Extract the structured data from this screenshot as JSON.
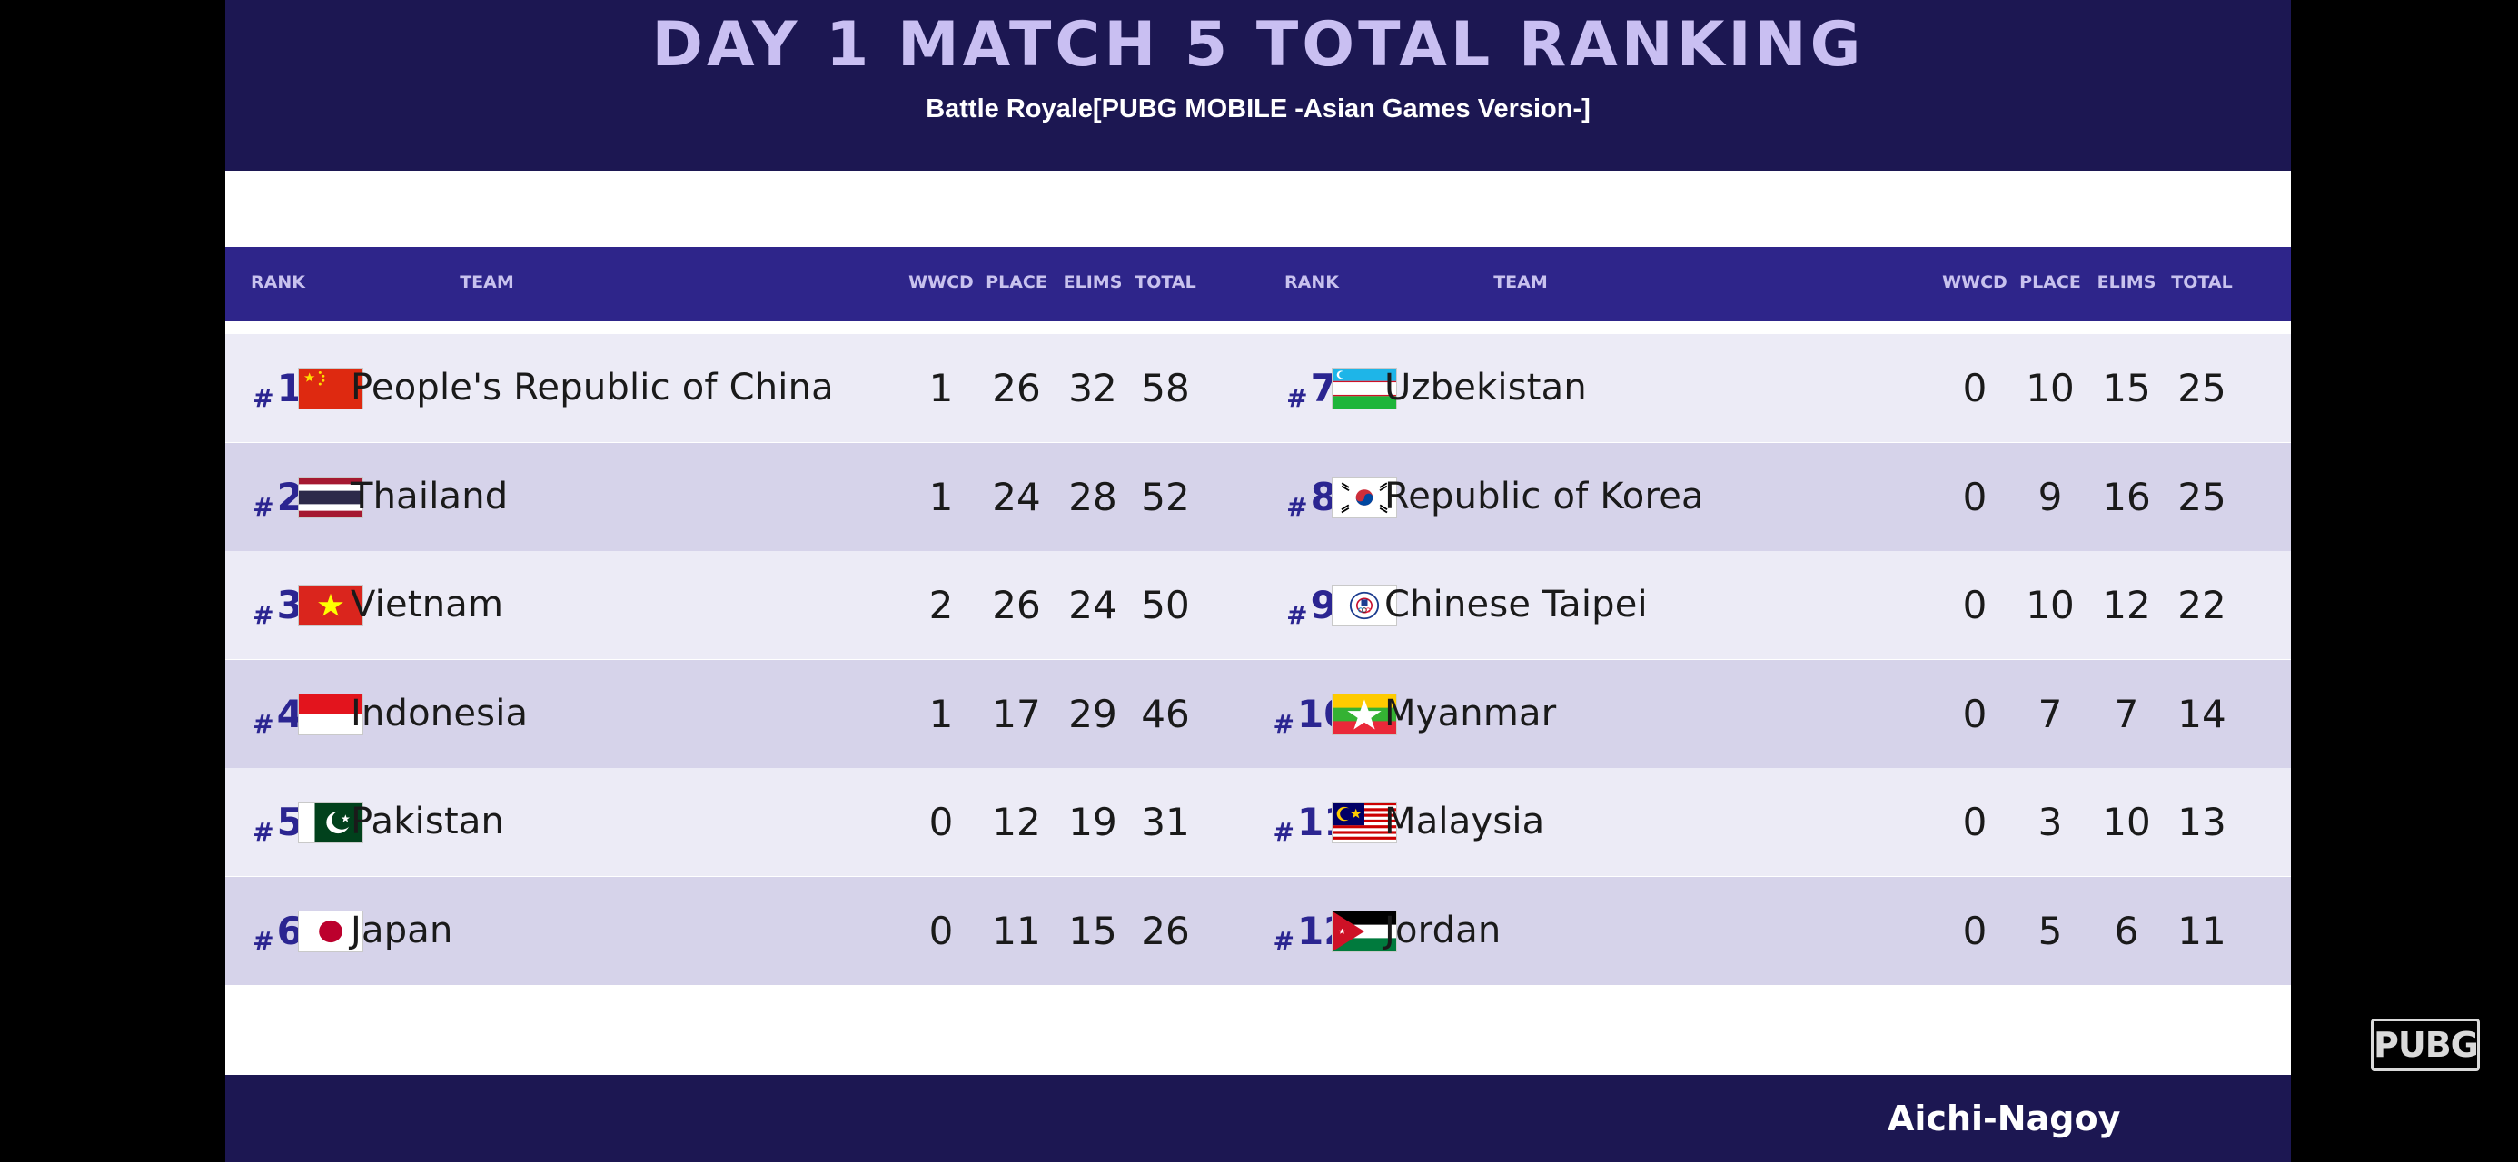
{
  "header": {
    "title": "DAY 1 MATCH 5 TOTAL RANKING",
    "subtitle": "Battle Royale[PUBG MOBILE -Asian Games Version-]"
  },
  "columns": {
    "rank": "RANK",
    "team": "TEAM",
    "wwcd": "WWCD",
    "place": "PLACE",
    "elims": "ELIMS",
    "total": "TOTAL"
  },
  "rank_prefix": "#",
  "left_rows": [
    {
      "rank": "1",
      "team": "People's Republic of China",
      "flag": "china-flag-icon",
      "wwcd": "1",
      "place": "26",
      "elims": "32",
      "total": "58"
    },
    {
      "rank": "2",
      "team": "Thailand",
      "flag": "thailand-flag-icon",
      "wwcd": "1",
      "place": "24",
      "elims": "28",
      "total": "52"
    },
    {
      "rank": "3",
      "team": "Vietnam",
      "flag": "vietnam-flag-icon",
      "wwcd": "2",
      "place": "26",
      "elims": "24",
      "total": "50"
    },
    {
      "rank": "4",
      "team": "Indonesia",
      "flag": "indonesia-flag-icon",
      "wwcd": "1",
      "place": "17",
      "elims": "29",
      "total": "46"
    },
    {
      "rank": "5",
      "team": "Pakistan",
      "flag": "pakistan-flag-icon",
      "wwcd": "0",
      "place": "12",
      "elims": "19",
      "total": "31"
    },
    {
      "rank": "6",
      "team": "Japan",
      "flag": "japan-flag-icon",
      "wwcd": "0",
      "place": "11",
      "elims": "15",
      "total": "26"
    }
  ],
  "right_rows": [
    {
      "rank": "7",
      "team": "Uzbekistan",
      "flag": "uzbekistan-flag-icon",
      "wwcd": "0",
      "place": "10",
      "elims": "15",
      "total": "25"
    },
    {
      "rank": "8",
      "team": "Republic of Korea",
      "flag": "korea-flag-icon",
      "wwcd": "0",
      "place": "9",
      "elims": "16",
      "total": "25"
    },
    {
      "rank": "9",
      "team": "Chinese Taipei",
      "flag": "chinese-taipei-flag-icon",
      "wwcd": "0",
      "place": "10",
      "elims": "12",
      "total": "22"
    },
    {
      "rank": "10",
      "team": "Myanmar",
      "flag": "myanmar-flag-icon",
      "wwcd": "0",
      "place": "7",
      "elims": "7",
      "total": "14"
    },
    {
      "rank": "11",
      "team": "Malaysia",
      "flag": "malaysia-flag-icon",
      "wwcd": "0",
      "place": "3",
      "elims": "10",
      "total": "13"
    },
    {
      "rank": "12",
      "team": "Jordan",
      "flag": "jordan-flag-icon",
      "wwcd": "0",
      "place": "5",
      "elims": "6",
      "total": "11"
    }
  ],
  "footer": {
    "location": "Aichi-Nagoy"
  },
  "watermark": {
    "text": "PUBG"
  },
  "colors": {
    "header_bg": "#1c1752",
    "column_bar_bg": "#2e258a",
    "rank_text": "#2b2591",
    "row_light": "#ecebf6",
    "row_dark": "#d6d3ea"
  }
}
